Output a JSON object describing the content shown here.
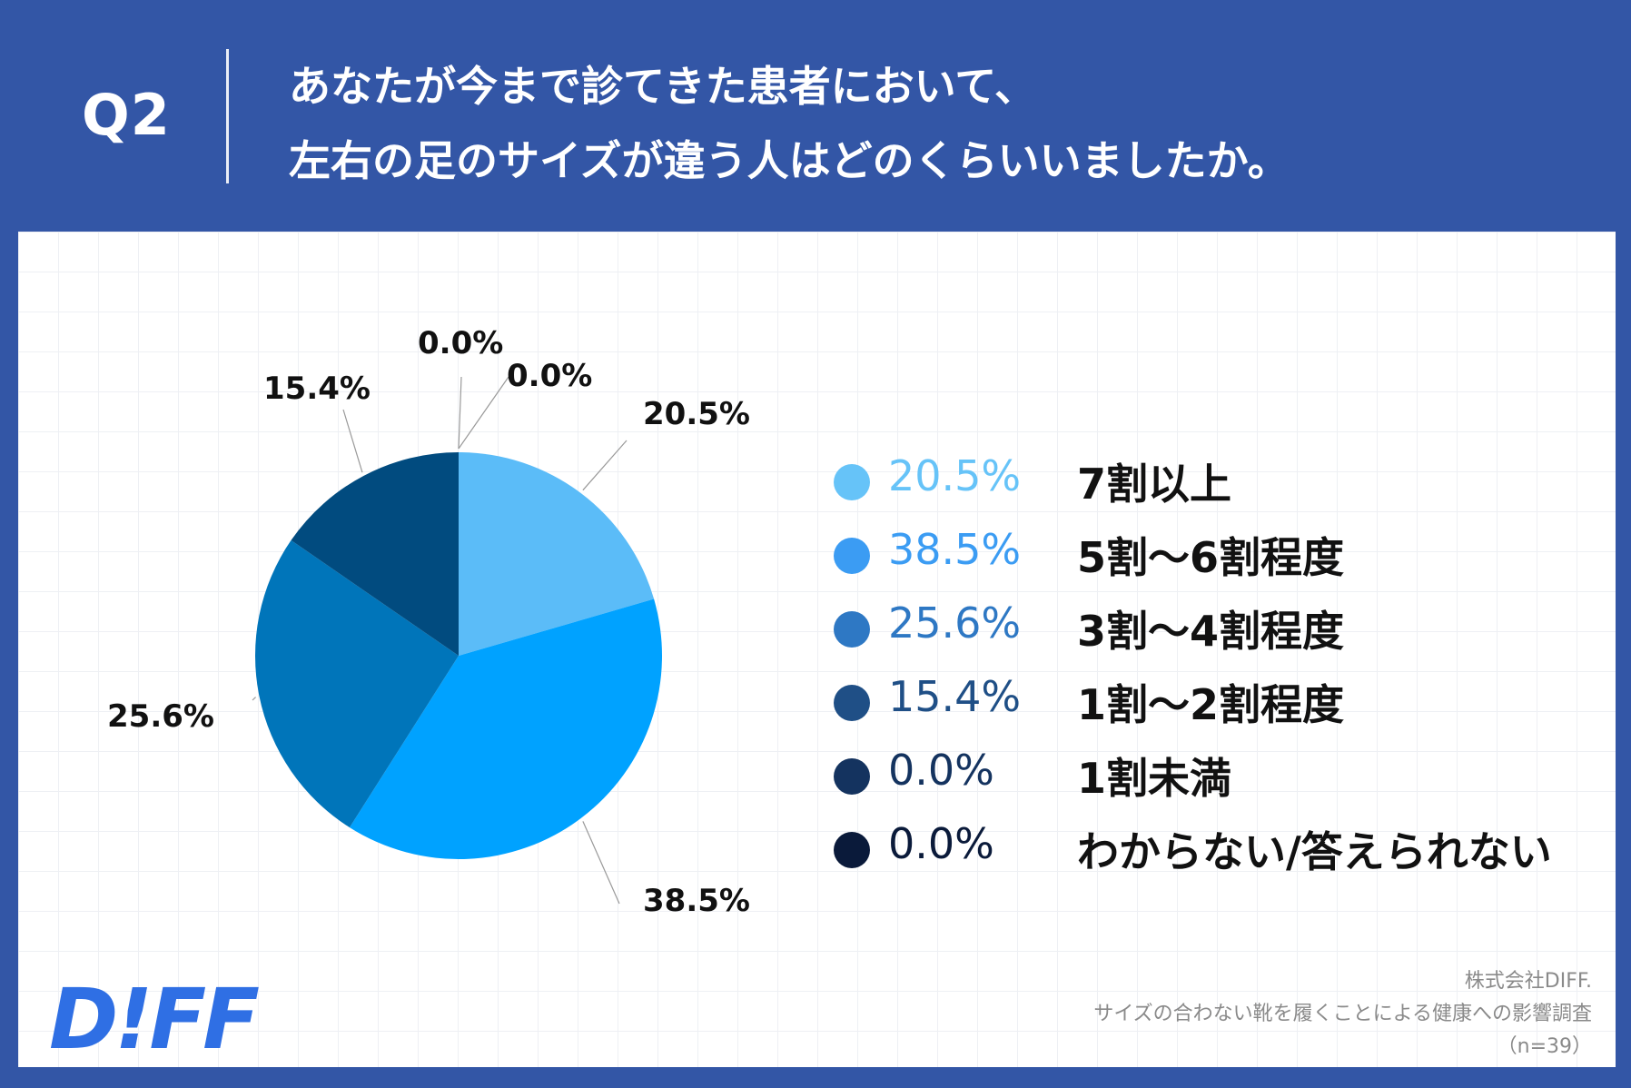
{
  "header": {
    "question_label": "Q2",
    "title_line1": "あなたが今まで診てきた患者において、",
    "title_line2": "左右の足のサイズが違う人はどのくらいいましたか。"
  },
  "chart_data": {
    "type": "pie",
    "title": "あなたが今まで診てきた患者において、左右の足のサイズが違う人はどのくらいいましたか。",
    "categories": [
      "7割以上",
      "5割〜6割程度",
      "3割〜4割程度",
      "1割〜2割程度",
      "1割未満",
      "わからない/答えられない"
    ],
    "values": [
      20.5,
      38.5,
      25.6,
      15.4,
      0.0,
      0.0
    ],
    "value_labels": [
      "20.5%",
      "38.5%",
      "25.6%",
      "15.4%",
      "0.0%",
      "0.0%"
    ],
    "colors": [
      "#5bbcf8",
      "#00a2ff",
      "#0075ba",
      "#014b7f",
      "#0a2f62",
      "#071a3c"
    ],
    "legend_colors": [
      "#66c3f8",
      "#3b9cf3",
      "#2e78c4",
      "#1f4f86",
      "#14335f",
      "#0a1a3a"
    ],
    "legend_placement": "right",
    "grid": true
  },
  "legend": {
    "items": [
      {
        "pct": "20.5%",
        "label": "7割以上"
      },
      {
        "pct": "38.5%",
        "label": "5割〜6割程度"
      },
      {
        "pct": "25.6%",
        "label": "3割〜4割程度"
      },
      {
        "pct": "15.4%",
        "label": "1割〜2割程度"
      },
      {
        "pct": "0.0%",
        "label": "1割未満"
      },
      {
        "pct": "0.0%",
        "label": "わからない/答えられない"
      }
    ]
  },
  "footer": {
    "logo_text": "D!FF",
    "source_line1": "株式会社DIFF.",
    "source_line2": "サイズの合わない靴を履くことによる健康への影響調査",
    "source_line3": "（n=39）"
  }
}
